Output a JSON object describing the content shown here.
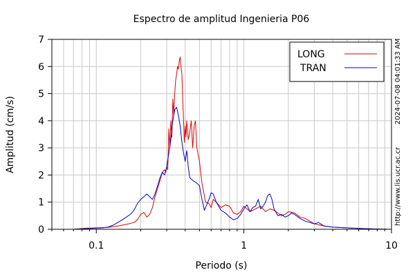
{
  "chart_data": {
    "type": "line",
    "title": "Espectro de amplitud Ingenieria P06",
    "xlabel": "Periodo (s)",
    "ylabel": "Amplitud (cm/s)",
    "x_scale": "log",
    "xlim": [
      0.05,
      10
    ],
    "ylim": [
      0,
      7
    ],
    "x_ticks": [
      {
        "value": 0.1,
        "label": "0.1"
      },
      {
        "value": 1,
        "label": "1"
      },
      {
        "value": 10,
        "label": "10"
      }
    ],
    "y_ticks": [
      0,
      1,
      2,
      3,
      4,
      5,
      6,
      7
    ],
    "grid": true,
    "legend": {
      "position": "top-right"
    },
    "side_text": {
      "timestamp": "2024-07-08 04:01:33 AM",
      "url": "http://www.lis.ucr.ac.cr"
    },
    "series": [
      {
        "name": "LONG",
        "color": "#dd0000",
        "points": [
          [
            0.05,
            0
          ],
          [
            0.07,
            0.0
          ],
          [
            0.085,
            0.04
          ],
          [
            0.1,
            0.05
          ],
          [
            0.12,
            0.07
          ],
          [
            0.14,
            0.12
          ],
          [
            0.16,
            0.18
          ],
          [
            0.18,
            0.25
          ],
          [
            0.19,
            0.35
          ],
          [
            0.2,
            0.55
          ],
          [
            0.21,
            0.62
          ],
          [
            0.22,
            0.45
          ],
          [
            0.23,
            0.55
          ],
          [
            0.24,
            0.8
          ],
          [
            0.25,
            1.2
          ],
          [
            0.26,
            1.5
          ],
          [
            0.27,
            1.8
          ],
          [
            0.28,
            2.1
          ],
          [
            0.29,
            2.2
          ],
          [
            0.295,
            2.1
          ],
          [
            0.3,
            2.3
          ],
          [
            0.305,
            2.2
          ],
          [
            0.31,
            3.7
          ],
          [
            0.315,
            3.0
          ],
          [
            0.32,
            4.0
          ],
          [
            0.325,
            3.4
          ],
          [
            0.33,
            4.8
          ],
          [
            0.335,
            4.2
          ],
          [
            0.34,
            5.0
          ],
          [
            0.345,
            5.5
          ],
          [
            0.35,
            5.7
          ],
          [
            0.355,
            6.0
          ],
          [
            0.36,
            5.9
          ],
          [
            0.365,
            6.2
          ],
          [
            0.37,
            6.35
          ],
          [
            0.375,
            6.0
          ],
          [
            0.38,
            5.7
          ],
          [
            0.385,
            4.8
          ],
          [
            0.39,
            4.0
          ],
          [
            0.395,
            3.2
          ],
          [
            0.4,
            3.8
          ],
          [
            0.405,
            3.4
          ],
          [
            0.41,
            4.0
          ],
          [
            0.42,
            3.3
          ],
          [
            0.43,
            3.6
          ],
          [
            0.44,
            4.0
          ],
          [
            0.45,
            3.0
          ],
          [
            0.46,
            3.8
          ],
          [
            0.47,
            4.0
          ],
          [
            0.48,
            3.0
          ],
          [
            0.5,
            2.5
          ],
          [
            0.52,
            1.7
          ],
          [
            0.55,
            1.0
          ],
          [
            0.58,
            0.95
          ],
          [
            0.6,
            0.8
          ],
          [
            0.62,
            1.1
          ],
          [
            0.65,
            1.0
          ],
          [
            0.7,
            0.8
          ],
          [
            0.75,
            0.9
          ],
          [
            0.8,
            0.85
          ],
          [
            0.85,
            0.6
          ],
          [
            0.9,
            0.55
          ],
          [
            0.95,
            0.65
          ],
          [
            1.0,
            0.85
          ],
          [
            1.05,
            0.75
          ],
          [
            1.1,
            0.65
          ],
          [
            1.2,
            0.75
          ],
          [
            1.3,
            0.85
          ],
          [
            1.4,
            0.65
          ],
          [
            1.5,
            0.75
          ],
          [
            1.6,
            0.7
          ],
          [
            1.7,
            0.6
          ],
          [
            1.8,
            0.5
          ],
          [
            1.9,
            0.55
          ],
          [
            2.0,
            0.65
          ],
          [
            2.2,
            0.6
          ],
          [
            2.4,
            0.45
          ],
          [
            2.6,
            0.4
          ],
          [
            3.0,
            0.2
          ],
          [
            3.5,
            0.12
          ],
          [
            4.0,
            0.08
          ],
          [
            5.0,
            0.05
          ],
          [
            6.0,
            0.03
          ],
          [
            7.0,
            0.02
          ],
          [
            8.0,
            0.01
          ],
          [
            10.0,
            0.0
          ]
        ]
      },
      {
        "name": "TRAN",
        "color": "#0000cc",
        "points": [
          [
            0.05,
            0
          ],
          [
            0.07,
            0.0
          ],
          [
            0.085,
            0.02
          ],
          [
            0.1,
            0.04
          ],
          [
            0.11,
            0.05
          ],
          [
            0.12,
            0.08
          ],
          [
            0.13,
            0.15
          ],
          [
            0.14,
            0.25
          ],
          [
            0.15,
            0.35
          ],
          [
            0.16,
            0.45
          ],
          [
            0.17,
            0.55
          ],
          [
            0.18,
            0.7
          ],
          [
            0.19,
            0.95
          ],
          [
            0.2,
            1.1
          ],
          [
            0.21,
            1.2
          ],
          [
            0.22,
            1.3
          ],
          [
            0.23,
            1.2
          ],
          [
            0.24,
            1.1
          ],
          [
            0.25,
            1.3
          ],
          [
            0.26,
            1.6
          ],
          [
            0.27,
            1.9
          ],
          [
            0.28,
            2.1
          ],
          [
            0.29,
            2.0
          ],
          [
            0.3,
            2.3
          ],
          [
            0.31,
            2.8
          ],
          [
            0.32,
            3.3
          ],
          [
            0.33,
            4.0
          ],
          [
            0.34,
            4.4
          ],
          [
            0.35,
            4.5
          ],
          [
            0.36,
            4.2
          ],
          [
            0.37,
            3.8
          ],
          [
            0.38,
            3.2
          ],
          [
            0.39,
            2.8
          ],
          [
            0.4,
            2.5
          ],
          [
            0.41,
            2.9
          ],
          [
            0.42,
            2.3
          ],
          [
            0.43,
            1.9
          ],
          [
            0.45,
            1.8
          ],
          [
            0.48,
            1.7
          ],
          [
            0.5,
            1.6
          ],
          [
            0.52,
            1.1
          ],
          [
            0.54,
            0.7
          ],
          [
            0.56,
            0.9
          ],
          [
            0.58,
            1.1
          ],
          [
            0.6,
            1.35
          ],
          [
            0.62,
            1.3
          ],
          [
            0.65,
            1.0
          ],
          [
            0.7,
            0.7
          ],
          [
            0.75,
            0.6
          ],
          [
            0.8,
            0.45
          ],
          [
            0.85,
            0.35
          ],
          [
            0.9,
            0.4
          ],
          [
            0.95,
            0.55
          ],
          [
            1.0,
            0.75
          ],
          [
            1.05,
            0.9
          ],
          [
            1.1,
            0.65
          ],
          [
            1.15,
            0.8
          ],
          [
            1.2,
            0.85
          ],
          [
            1.25,
            1.1
          ],
          [
            1.3,
            0.75
          ],
          [
            1.35,
            0.85
          ],
          [
            1.4,
            1.0
          ],
          [
            1.45,
            1.25
          ],
          [
            1.5,
            1.3
          ],
          [
            1.55,
            1.1
          ],
          [
            1.6,
            0.75
          ],
          [
            1.7,
            0.5
          ],
          [
            1.8,
            0.55
          ],
          [
            1.9,
            0.45
          ],
          [
            2.0,
            0.5
          ],
          [
            2.1,
            0.6
          ],
          [
            2.2,
            0.55
          ],
          [
            2.4,
            0.4
          ],
          [
            2.6,
            0.3
          ],
          [
            2.8,
            0.25
          ],
          [
            3.0,
            0.2
          ],
          [
            3.2,
            0.25
          ],
          [
            3.5,
            0.12
          ],
          [
            4.0,
            0.08
          ],
          [
            5.0,
            0.05
          ],
          [
            6.0,
            0.03
          ],
          [
            7.0,
            0.02
          ],
          [
            8.0,
            0.01
          ],
          [
            10.0,
            0.0
          ]
        ]
      }
    ]
  }
}
